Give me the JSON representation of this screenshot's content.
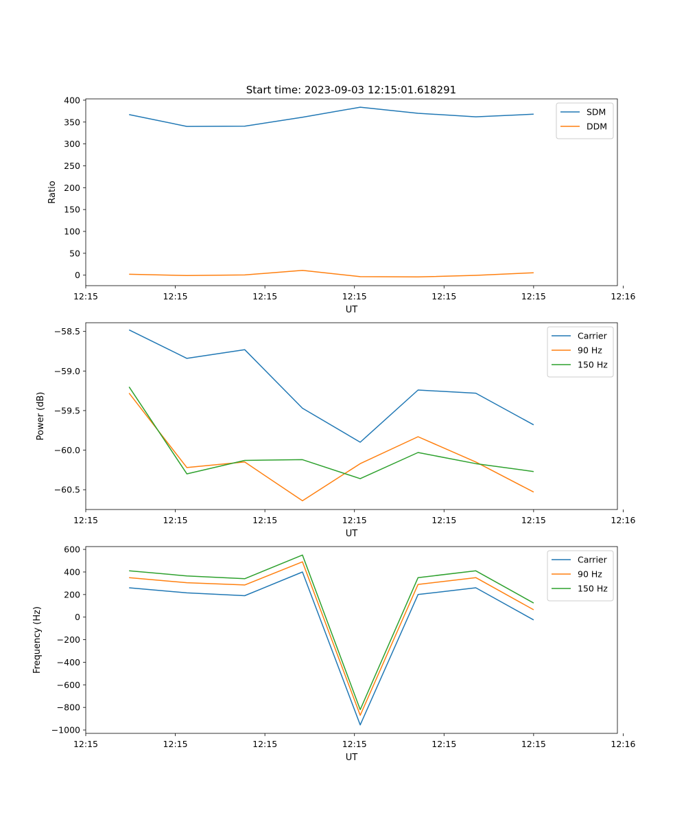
{
  "title": "Start time: 2023-09-03 12:15:01.618291",
  "colors": {
    "blue": "#1f77b4",
    "orange": "#ff7f0e",
    "green": "#2ca02c"
  },
  "chart_data": [
    {
      "type": "line",
      "xlabel": "UT",
      "ylabel": "Ratio",
      "x": [
        0,
        1,
        2,
        3,
        4,
        5,
        6,
        7
      ],
      "xlim": [
        -0.75,
        8.45
      ],
      "xticks": [
        -0.75,
        0.8,
        2.35,
        3.9,
        5.45,
        7.0,
        8.55
      ],
      "xtick_labels": [
        "12:15",
        "12:15",
        "12:15",
        "12:15",
        "12:15",
        "12:15",
        "12:16"
      ],
      "ylim": [
        -24,
        403
      ],
      "yticks": [
        0,
        50,
        100,
        150,
        200,
        250,
        300,
        350,
        400
      ],
      "ytick_labels": [
        "0",
        "50",
        "100",
        "150",
        "200",
        "250",
        "300",
        "350",
        "400"
      ],
      "legend": "top-right",
      "series": [
        {
          "name": "SDM",
          "color": "#1f77b4",
          "values": [
            367,
            340,
            340.5,
            361,
            384,
            370,
            362,
            368
          ]
        },
        {
          "name": "DDM",
          "color": "#ff7f0e",
          "values": [
            2,
            -1,
            0.5,
            11,
            -3.5,
            -4,
            -0.5,
            5.5
          ]
        }
      ]
    },
    {
      "type": "line",
      "xlabel": "UT",
      "ylabel": "Power (dB)",
      "x": [
        0,
        1,
        2,
        3,
        4,
        5,
        6,
        7
      ],
      "xlim": [
        -0.75,
        8.45
      ],
      "xticks": [
        -0.75,
        0.8,
        2.35,
        3.9,
        5.45,
        7.0,
        8.55
      ],
      "xtick_labels": [
        "12:15",
        "12:15",
        "12:15",
        "12:15",
        "12:15",
        "12:15",
        "12:16"
      ],
      "ylim": [
        -60.75,
        -58.39
      ],
      "yticks": [
        -60.5,
        -60.0,
        -59.5,
        -59.0,
        -58.5
      ],
      "ytick_labels": [
        "−60.5",
        "−60.0",
        "−59.5",
        "−59.0",
        "−58.5"
      ],
      "legend": "top-right",
      "series": [
        {
          "name": "Carrier",
          "color": "#1f77b4",
          "values": [
            -58.48,
            -58.84,
            -58.73,
            -59.47,
            -59.9,
            -59.24,
            -59.28,
            -59.68
          ]
        },
        {
          "name": "90 Hz",
          "color": "#ff7f0e",
          "values": [
            -59.28,
            -60.22,
            -60.15,
            -60.64,
            -60.17,
            -59.83,
            -60.15,
            -60.53
          ]
        },
        {
          "name": "150 Hz",
          "color": "#2ca02c",
          "values": [
            -59.2,
            -60.3,
            -60.13,
            -60.12,
            -60.36,
            -60.03,
            -60.17,
            -60.27
          ]
        }
      ]
    },
    {
      "type": "line",
      "xlabel": "UT",
      "ylabel": "Frequency (Hz)",
      "x": [
        0,
        1,
        2,
        3,
        4,
        5,
        6,
        7
      ],
      "xlim": [
        -0.75,
        8.45
      ],
      "xticks": [
        -0.75,
        0.8,
        2.35,
        3.9,
        5.45,
        7.0,
        8.55
      ],
      "xtick_labels": [
        "12:15",
        "12:15",
        "12:15",
        "12:15",
        "12:15",
        "12:15",
        "12:16"
      ],
      "ylim": [
        -1030,
        625
      ],
      "yticks": [
        -1000,
        -800,
        -600,
        -400,
        -200,
        0,
        200,
        400,
        600
      ],
      "ytick_labels": [
        "−1000",
        "−800",
        "−600",
        "−400",
        "−200",
        "0",
        "200",
        "400",
        "600"
      ],
      "legend": "top-right",
      "series": [
        {
          "name": "Carrier",
          "color": "#1f77b4",
          "values": [
            260,
            215,
            190,
            400,
            -955,
            200,
            260,
            -25
          ]
        },
        {
          "name": "90 Hz",
          "color": "#ff7f0e",
          "values": [
            350,
            305,
            285,
            490,
            -870,
            290,
            350,
            65
          ]
        },
        {
          "name": "150 Hz",
          "color": "#2ca02c",
          "values": [
            410,
            365,
            340,
            550,
            -820,
            350,
            410,
            125
          ]
        }
      ]
    }
  ]
}
